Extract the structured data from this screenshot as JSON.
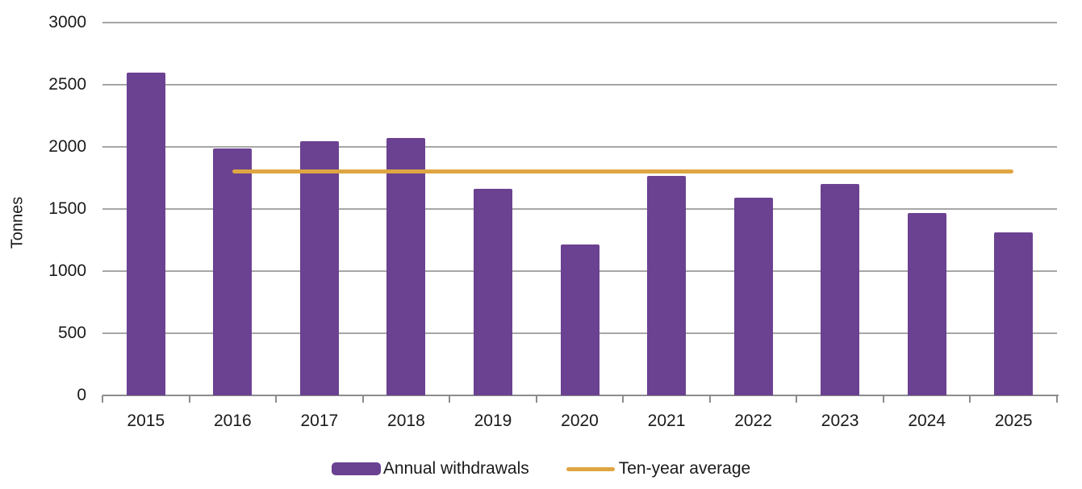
{
  "chart_data": {
    "type": "bar",
    "title": "",
    "ylabel": "Tonnes",
    "xlabel": "",
    "categories": [
      "2015",
      "2016",
      "2017",
      "2018",
      "2019",
      "2020",
      "2021",
      "2022",
      "2023",
      "2024",
      "2025"
    ],
    "series": [
      {
        "name": "Annual withdrawals",
        "type": "bar",
        "color": "#6B4191",
        "values": [
          2600,
          1985,
          2045,
          2070,
          1660,
          1215,
          1765,
          1590,
          1700,
          1470,
          1310
        ]
      },
      {
        "name": "Ten-year average",
        "type": "line",
        "color": "#DEA642",
        "value": 1800,
        "start_category": "2016",
        "end_category": "2025"
      }
    ],
    "yticks": [
      0,
      500,
      1000,
      1500,
      2000,
      2500,
      3000
    ],
    "ylim": [
      0,
      3000
    ],
    "grid": true,
    "legend_position": "bottom"
  },
  "colors": {
    "bar": "#6B4191",
    "line": "#DEA642",
    "grid": "#A6A6A6",
    "axis": "#8C8C8C",
    "text": "#1A1A1A",
    "background": "#FFFFFF"
  },
  "legend": {
    "items": [
      {
        "label": "Annual withdrawals"
      },
      {
        "label": "Ten-year average"
      }
    ]
  }
}
